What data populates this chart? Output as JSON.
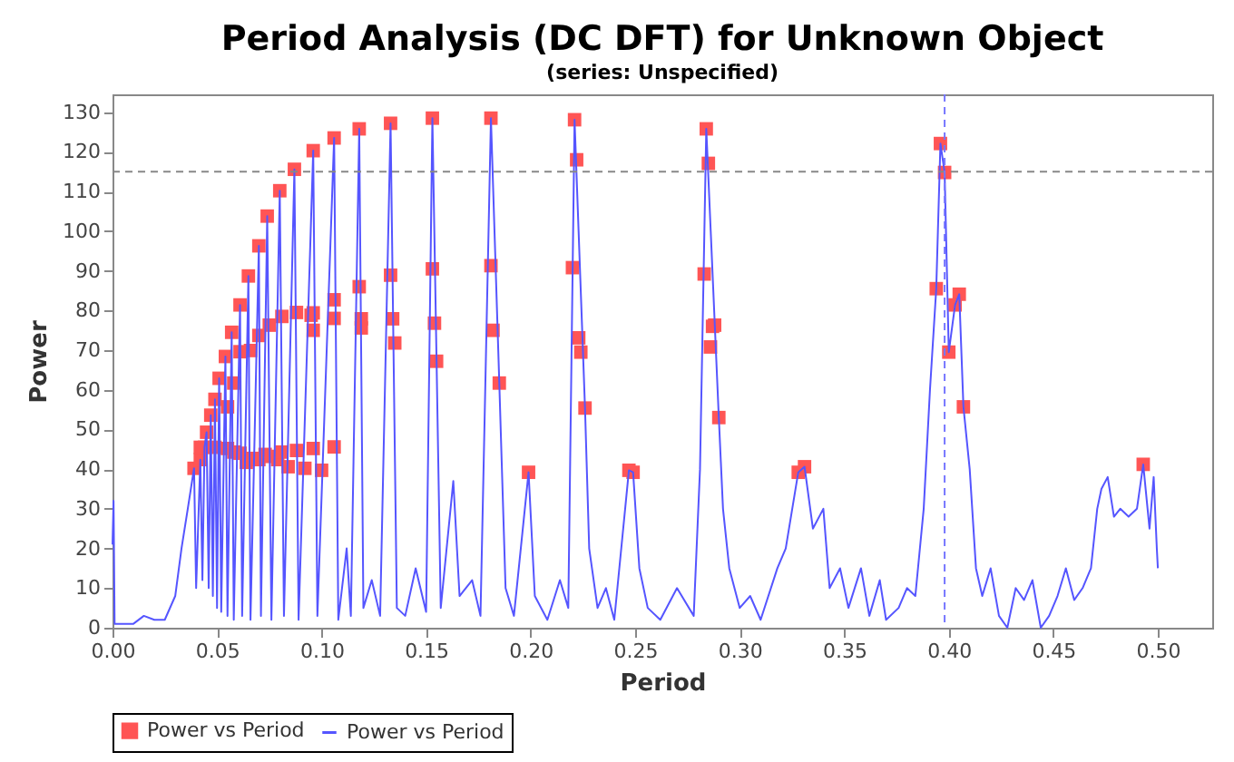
{
  "chart_data": {
    "type": "line",
    "title": "Period Analysis (DC DFT) for Unknown Object",
    "subtitle": "(series: Unspecified)",
    "xlabel": "Period",
    "ylabel": "Power",
    "xlim": [
      0,
      0.526
    ],
    "ylim": [
      0,
      134.5
    ],
    "xticks": [
      {
        "value": 0,
        "label": "0.00"
      },
      {
        "value": 0.05,
        "label": "0.05"
      },
      {
        "value": 0.1,
        "label": "0.10"
      },
      {
        "value": 0.15,
        "label": "0.15"
      },
      {
        "value": 0.2,
        "label": "0.20"
      },
      {
        "value": 0.25,
        "label": "0.25"
      },
      {
        "value": 0.3,
        "label": "0.30"
      },
      {
        "value": 0.35,
        "label": "0.35"
      },
      {
        "value": 0.4,
        "label": "0.40"
      },
      {
        "value": 0.45,
        "label": "0.45"
      },
      {
        "value": 0.5,
        "label": "0.50"
      }
    ],
    "yticks": [
      0,
      10,
      20,
      30,
      40,
      50,
      60,
      70,
      80,
      90,
      100,
      110,
      120,
      130
    ],
    "legend": "bottom",
    "ref_lines": [
      {
        "axis": "y",
        "value": 115,
        "color": "#888888",
        "line_style": "dashed"
      },
      {
        "axis": "x",
        "value": 0.398,
        "color": "#7777ff",
        "line_style": "dashed"
      }
    ],
    "series": [
      {
        "type": "scatter",
        "marker": "square",
        "name": "Power vs Period",
        "color": "#ff5555",
        "x": [
          0.039,
          0.042,
          0.044,
          0.045,
          0.047,
          0.049,
          0.051,
          0.054,
          0.057,
          0.061,
          0.065,
          0.07,
          0.074,
          0.08,
          0.087,
          0.096,
          0.106,
          0.118,
          0.133,
          0.153,
          0.055,
          0.058,
          0.061,
          0.066,
          0.07,
          0.075,
          0.081,
          0.088,
          0.095,
          0.096,
          0.096,
          0.106,
          0.106,
          0.118,
          0.119,
          0.119,
          0.133,
          0.134,
          0.135,
          0.153,
          0.154,
          0.155,
          0.042,
          0.049,
          0.055,
          0.058,
          0.061,
          0.064,
          0.067,
          0.07,
          0.073,
          0.076,
          0.079,
          0.081,
          0.084,
          0.088,
          0.092,
          0.096,
          0.1,
          0.106,
          0.181,
          0.181,
          0.182,
          0.185,
          0.199,
          0.221,
          0.222,
          0.22,
          0.223,
          0.224,
          0.226,
          0.247,
          0.249,
          0.284,
          0.285,
          0.283,
          0.287,
          0.288,
          0.286,
          0.29,
          0.328,
          0.331,
          0.396,
          0.398,
          0.394,
          0.405,
          0.403,
          0.4,
          0.407,
          0.493
        ],
        "values": [
          40.2,
          42.4,
          45.5,
          49.3,
          53.6,
          57.6,
          62.9,
          68.4,
          74.5,
          81.4,
          88.7,
          96.3,
          103.8,
          110.2,
          115.6,
          120.3,
          123.5,
          125.8,
          127.2,
          128.5,
          55.7,
          61.7,
          69.6,
          69.9,
          73.7,
          76.3,
          78.5,
          79.5,
          78.8,
          75.0,
          79.4,
          82.7,
          78.0,
          86.0,
          77.9,
          75.6,
          88.9,
          77.9,
          71.8,
          90.5,
          76.8,
          67.2,
          45.5,
          45.5,
          45.2,
          44.3,
          44.0,
          41.7,
          42.7,
          42.4,
          43.7,
          43.2,
          42.4,
          44.3,
          40.6,
          44.7,
          40.2,
          45.2,
          39.7,
          45.6,
          128.5,
          91.3,
          75.0,
          61.7,
          39.2,
          128.1,
          118.0,
          90.8,
          73.1,
          69.5,
          55.4,
          39.7,
          39.2,
          125.8,
          117.1,
          89.2,
          76.0,
          76.3,
          70.8,
          53.0,
          39.2,
          40.6,
          122.1,
          114.8,
          85.5,
          84.1,
          81.4,
          69.5,
          55.7,
          41.2
        ]
      },
      {
        "type": "line",
        "name": "Power vs Period",
        "color": "#5555ff",
        "x": [
          0,
          0.0005,
          0.001,
          0.005,
          0.01,
          0.015,
          0.02,
          0.025,
          0.03,
          0.033,
          0.036,
          0.039,
          0.04,
          0.042,
          0.043,
          0.044,
          0.045,
          0.046,
          0.047,
          0.048,
          0.049,
          0.05,
          0.051,
          0.052,
          0.054,
          0.055,
          0.057,
          0.058,
          0.061,
          0.062,
          0.065,
          0.066,
          0.07,
          0.071,
          0.074,
          0.076,
          0.08,
          0.082,
          0.087,
          0.089,
          0.096,
          0.098,
          0.106,
          0.108,
          0.112,
          0.114,
          0.118,
          0.12,
          0.124,
          0.128,
          0.133,
          0.136,
          0.14,
          0.145,
          0.15,
          0.153,
          0.155,
          0.157,
          0.163,
          0.166,
          0.172,
          0.176,
          0.181,
          0.185,
          0.188,
          0.192,
          0.199,
          0.202,
          0.208,
          0.214,
          0.218,
          0.221,
          0.226,
          0.228,
          0.232,
          0.236,
          0.24,
          0.247,
          0.249,
          0.252,
          0.256,
          0.262,
          0.27,
          0.278,
          0.281,
          0.284,
          0.29,
          0.292,
          0.295,
          0.3,
          0.305,
          0.31,
          0.318,
          0.322,
          0.328,
          0.331,
          0.335,
          0.34,
          0.343,
          0.348,
          0.352,
          0.358,
          0.362,
          0.367,
          0.37,
          0.376,
          0.38,
          0.384,
          0.388,
          0.391,
          0.394,
          0.396,
          0.398,
          0.4,
          0.403,
          0.405,
          0.407,
          0.41,
          0.413,
          0.416,
          0.42,
          0.424,
          0.428,
          0.432,
          0.436,
          0.44,
          0.444,
          0.448,
          0.452,
          0.456,
          0.46,
          0.464,
          0.468,
          0.471,
          0.473,
          0.476,
          0.479,
          0.482,
          0.486,
          0.49,
          0.493,
          0.496,
          0.498,
          0.4995,
          0.5
        ],
        "values": [
          21,
          32,
          1,
          1,
          1,
          3,
          2,
          2,
          8,
          20,
          30,
          40.2,
          10,
          42.4,
          12,
          45.5,
          49.3,
          10,
          53.6,
          8,
          57.6,
          5,
          62.9,
          4,
          68.4,
          3,
          74.5,
          2,
          81.4,
          3,
          88.7,
          2,
          96.3,
          3,
          103.8,
          2,
          110.2,
          3,
          115.6,
          2,
          120.3,
          3,
          123.5,
          2,
          20,
          3,
          125.8,
          5,
          12,
          3,
          127.2,
          5,
          3,
          15,
          4,
          128.5,
          67.2,
          5,
          37,
          8,
          12,
          3,
          128.5,
          61.7,
          10,
          3,
          39.2,
          8,
          2,
          12,
          5,
          128.1,
          55.4,
          20,
          5,
          10,
          2,
          39.7,
          39.2,
          15,
          5,
          2,
          10,
          3,
          40,
          125.8,
          53.0,
          30,
          15,
          5,
          8,
          2,
          15,
          20,
          39.2,
          40.6,
          25,
          30,
          10,
          15,
          5,
          15,
          3,
          12,
          2,
          5,
          10,
          8,
          30,
          60,
          85.5,
          122.1,
          114.8,
          69.5,
          81.4,
          84.1,
          55.7,
          40,
          15,
          8,
          15,
          3,
          0,
          10,
          7,
          12,
          0,
          3,
          8,
          15,
          7,
          10,
          15,
          30,
          35,
          38,
          28,
          30,
          28,
          30,
          41.2,
          25,
          38,
          20,
          15
        ]
      }
    ]
  }
}
